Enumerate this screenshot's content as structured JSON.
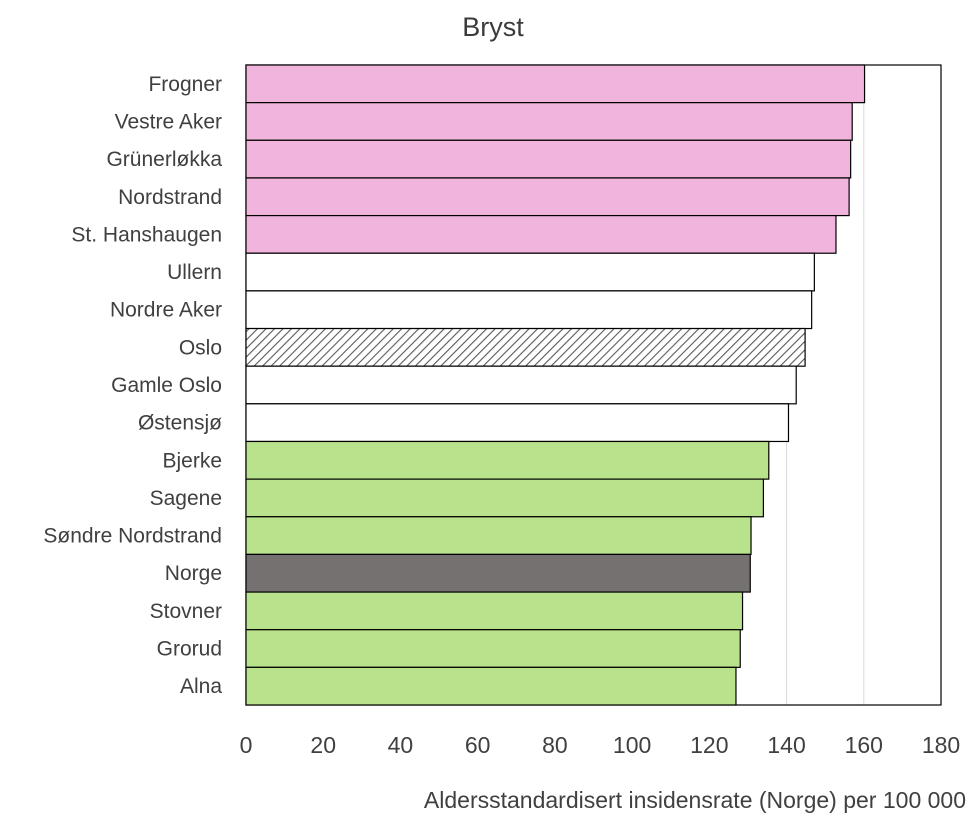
{
  "chart_data": {
    "type": "bar",
    "orientation": "horizontal",
    "title": "Bryst",
    "xlabel": "Aldersstandardisert insidensrate (Norge) per 100 000",
    "ylabel": "",
    "xlim": [
      0,
      180
    ],
    "xticks": [
      0,
      20,
      40,
      60,
      80,
      100,
      120,
      140,
      160,
      180
    ],
    "grid": "vertical",
    "legend": "none",
    "categories": [
      "Frogner",
      "Vestre Aker",
      "Grünerløkka",
      "Nordstrand",
      "St. Hanshaugen",
      "Ullern",
      "Nordre Aker",
      "Oslo",
      "Gamle Oslo",
      "Østensjø",
      "Bjerke",
      "Sagene",
      "Søndre Nordstrand",
      "Norge",
      "Stovner",
      "Grorud",
      "Alna"
    ],
    "values": [
      160.2,
      157.0,
      156.6,
      156.2,
      152.8,
      147.2,
      146.5,
      144.8,
      142.5,
      140.5,
      135.4,
      134.0,
      130.8,
      130.6,
      128.6,
      128.0,
      126.9
    ],
    "groups": [
      "high",
      "high",
      "high",
      "high",
      "high",
      "mid",
      "mid",
      "oslo",
      "mid",
      "mid",
      "low",
      "low",
      "low",
      "norge",
      "low",
      "low",
      "low"
    ],
    "group_colors": {
      "high": "#f1b4dc",
      "mid": "#ffffff",
      "oslo": "hatched",
      "norge": "#767171",
      "low": "#b9e28c"
    }
  }
}
